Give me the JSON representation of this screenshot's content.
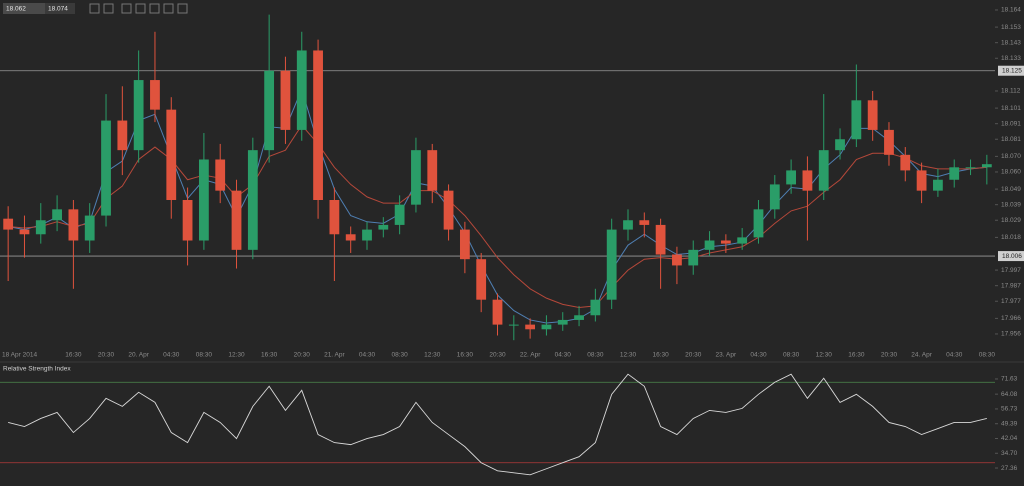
{
  "toolbar": {
    "bid": 18.062,
    "ask": 18.074
  },
  "chart_data": [
    {
      "type": "candlestick",
      "categories": [
        "18 Apr 2014",
        null,
        null,
        null,
        "16:30",
        null,
        "20:30",
        null,
        "20. Apr",
        null,
        "04:30",
        null,
        "08:30",
        null,
        "12:30",
        null,
        "16:30",
        null,
        "20:30",
        null,
        "21. Apr",
        null,
        "04:30",
        null,
        "08:30",
        null,
        "12:30",
        null,
        "16:30",
        null,
        "20:30",
        null,
        "22. Apr",
        null,
        "04:30",
        null,
        "08:30",
        null,
        "12:30",
        null,
        "16:30",
        null,
        "20:30",
        null,
        "23. Apr",
        null,
        "04:30",
        null,
        "08:30",
        null,
        "12:30",
        null,
        "16:30",
        null,
        "20:30",
        null,
        "24. Apr",
        null,
        "04:30",
        null,
        "08:30"
      ],
      "ohlc": [
        [
          18.03,
          18.038,
          17.99,
          18.023
        ],
        [
          18.023,
          18.032,
          18.005,
          18.02
        ],
        [
          18.02,
          18.04,
          18.014,
          18.029
        ],
        [
          18.029,
          18.045,
          18.022,
          18.036
        ],
        [
          18.036,
          18.042,
          17.985,
          18.016
        ],
        [
          18.016,
          18.04,
          18.008,
          18.032
        ],
        [
          18.032,
          18.11,
          18.025,
          18.093
        ],
        [
          18.093,
          18.115,
          18.058,
          18.074
        ],
        [
          18.074,
          18.138,
          18.066,
          18.119
        ],
        [
          18.119,
          18.15,
          18.092,
          18.1
        ],
        [
          18.1,
          18.108,
          18.03,
          18.042
        ],
        [
          18.042,
          18.05,
          18.0,
          18.016
        ],
        [
          18.016,
          18.085,
          18.01,
          18.068
        ],
        [
          18.068,
          18.078,
          18.04,
          18.048
        ],
        [
          18.048,
          18.055,
          17.998,
          18.01
        ],
        [
          18.01,
          18.082,
          18.004,
          18.074
        ],
        [
          18.074,
          18.161,
          18.066,
          18.125
        ],
        [
          18.125,
          18.134,
          18.078,
          18.087
        ],
        [
          18.087,
          18.15,
          18.08,
          18.138
        ],
        [
          18.138,
          18.145,
          18.03,
          18.042
        ],
        [
          18.042,
          18.05,
          17.99,
          18.02
        ],
        [
          18.02,
          18.025,
          18.008,
          18.016
        ],
        [
          18.016,
          18.028,
          18.01,
          18.023
        ],
        [
          18.023,
          18.031,
          18.018,
          18.026
        ],
        [
          18.026,
          18.045,
          18.02,
          18.039
        ],
        [
          18.039,
          18.082,
          18.034,
          18.074
        ],
        [
          18.074,
          18.078,
          18.04,
          18.048
        ],
        [
          18.048,
          18.052,
          18.016,
          18.023
        ],
        [
          18.023,
          18.028,
          17.995,
          18.004
        ],
        [
          18.004,
          18.008,
          17.97,
          17.978
        ],
        [
          17.978,
          17.982,
          17.955,
          17.962
        ],
        [
          17.962,
          17.968,
          17.952,
          17.962
        ],
        [
          17.962,
          17.966,
          17.953,
          17.959
        ],
        [
          17.959,
          17.968,
          17.955,
          17.962
        ],
        [
          17.962,
          17.97,
          17.958,
          17.965
        ],
        [
          17.965,
          17.974,
          17.961,
          17.968
        ],
        [
          17.968,
          17.985,
          17.964,
          17.978
        ],
        [
          17.978,
          18.03,
          17.972,
          18.023
        ],
        [
          18.023,
          18.036,
          18.016,
          18.029
        ],
        [
          18.029,
          18.034,
          18.018,
          18.026
        ],
        [
          18.026,
          18.03,
          17.985,
          18.007
        ],
        [
          18.007,
          18.012,
          17.988,
          18.0
        ],
        [
          18.0,
          18.016,
          17.994,
          18.01
        ],
        [
          18.01,
          18.022,
          18.006,
          18.016
        ],
        [
          18.016,
          18.02,
          18.008,
          18.014
        ],
        [
          18.014,
          18.024,
          18.01,
          18.018
        ],
        [
          18.018,
          18.042,
          18.014,
          18.036
        ],
        [
          18.036,
          18.058,
          18.03,
          18.052
        ],
        [
          18.052,
          18.068,
          18.046,
          18.061
        ],
        [
          18.061,
          18.07,
          18.016,
          18.048
        ],
        [
          18.048,
          18.11,
          18.042,
          18.074
        ],
        [
          18.074,
          18.088,
          18.068,
          18.081
        ],
        [
          18.081,
          18.129,
          18.076,
          18.106
        ],
        [
          18.106,
          18.112,
          18.08,
          18.087
        ],
        [
          18.087,
          18.092,
          18.064,
          18.071
        ],
        [
          18.071,
          18.076,
          18.054,
          18.061
        ],
        [
          18.061,
          18.066,
          18.04,
          18.048
        ],
        [
          18.048,
          18.062,
          18.044,
          18.055
        ],
        [
          18.055,
          18.068,
          18.05,
          18.063
        ],
        [
          18.063,
          18.068,
          18.058,
          18.063
        ],
        [
          18.063,
          18.071,
          18.052,
          18.065
        ]
      ],
      "up_color": "#2a9d68",
      "down_color": "#e0533d",
      "overlays": [
        {
          "color": "#4f7fb3",
          "values": [
            18.025,
            18.023,
            18.026,
            18.031,
            18.024,
            18.028,
            18.06,
            18.067,
            18.093,
            18.097,
            18.07,
            18.043,
            18.055,
            18.052,
            18.031,
            18.052,
            18.089,
            18.088,
            18.113,
            18.078,
            18.049,
            18.032,
            18.028,
            18.027,
            18.033,
            18.053,
            18.051,
            18.037,
            18.021,
            18.0,
            17.981,
            17.971,
            17.965,
            17.963,
            17.964,
            17.966,
            17.972,
            17.997,
            18.013,
            18.02,
            18.013,
            18.007,
            18.008,
            18.012,
            18.013,
            18.015,
            18.026,
            18.039,
            18.05,
            18.049,
            18.062,
            18.071,
            18.088,
            18.088,
            18.08,
            18.07,
            18.059,
            18.057,
            18.06,
            18.062,
            18.063
          ]
        },
        {
          "color": "#b5483a",
          "values": [
            18.025,
            18.024,
            18.025,
            18.028,
            18.025,
            18.027,
            18.043,
            18.051,
            18.068,
            18.076,
            18.068,
            18.055,
            18.058,
            18.056,
            18.044,
            18.052,
            18.07,
            18.074,
            18.09,
            18.078,
            18.063,
            18.052,
            18.044,
            18.04,
            18.04,
            18.048,
            18.048,
            18.042,
            18.032,
            18.019,
            18.005,
            17.994,
            17.985,
            17.979,
            17.975,
            17.973,
            17.974,
            17.986,
            17.997,
            18.004,
            18.005,
            18.004,
            18.005,
            18.008,
            18.01,
            18.012,
            18.018,
            18.027,
            18.035,
            18.038,
            18.047,
            18.055,
            18.068,
            18.072,
            18.072,
            18.069,
            18.064,
            18.062,
            18.062,
            18.062,
            18.063
          ]
        }
      ],
      "ylim": [
        17.9457,
        18.1704
      ],
      "yticks": [
        18.164,
        18.153,
        18.143,
        18.133,
        18.112,
        18.101,
        18.091,
        18.081,
        {
          "value": 18.07,
          "label": "18.070"
        },
        {
          "value": 18.06,
          "label": "18.060"
        },
        18.049,
        18.039,
        18.029,
        18.018,
        17.997,
        17.987,
        17.977,
        17.966,
        17.956
      ],
      "hlines": [
        18.125,
        {
          "value": 18.006,
          "label": "18.006"
        }
      ]
    },
    {
      "type": "line",
      "title": "Relative Strength Index",
      "color": "#d9d9d9",
      "values": [
        50,
        48,
        52,
        55,
        45,
        52,
        62,
        58,
        65,
        60,
        45,
        40,
        55,
        50,
        42,
        58,
        68,
        56,
        66,
        44,
        40,
        39,
        42,
        44,
        48,
        60,
        50,
        44,
        38,
        30,
        26,
        25,
        24,
        27,
        30,
        33,
        40,
        64,
        74,
        68,
        48,
        44,
        52,
        56,
        55,
        57,
        64,
        70,
        74,
        62,
        72,
        60,
        64,
        58,
        50,
        48,
        44,
        47,
        50,
        50,
        52
      ],
      "ylim": [
        18.43,
        80.06
      ],
      "yticks": [
        71.63,
        64.08,
        56.73,
        49.39,
        42.04,
        {
          "value": 34.7,
          "label": "34.70"
        },
        27.36
      ],
      "levels": [
        {
          "value": 70,
          "color": "#4d8a4d"
        },
        {
          "value": 30,
          "color": "#b23a3a"
        }
      ]
    }
  ]
}
